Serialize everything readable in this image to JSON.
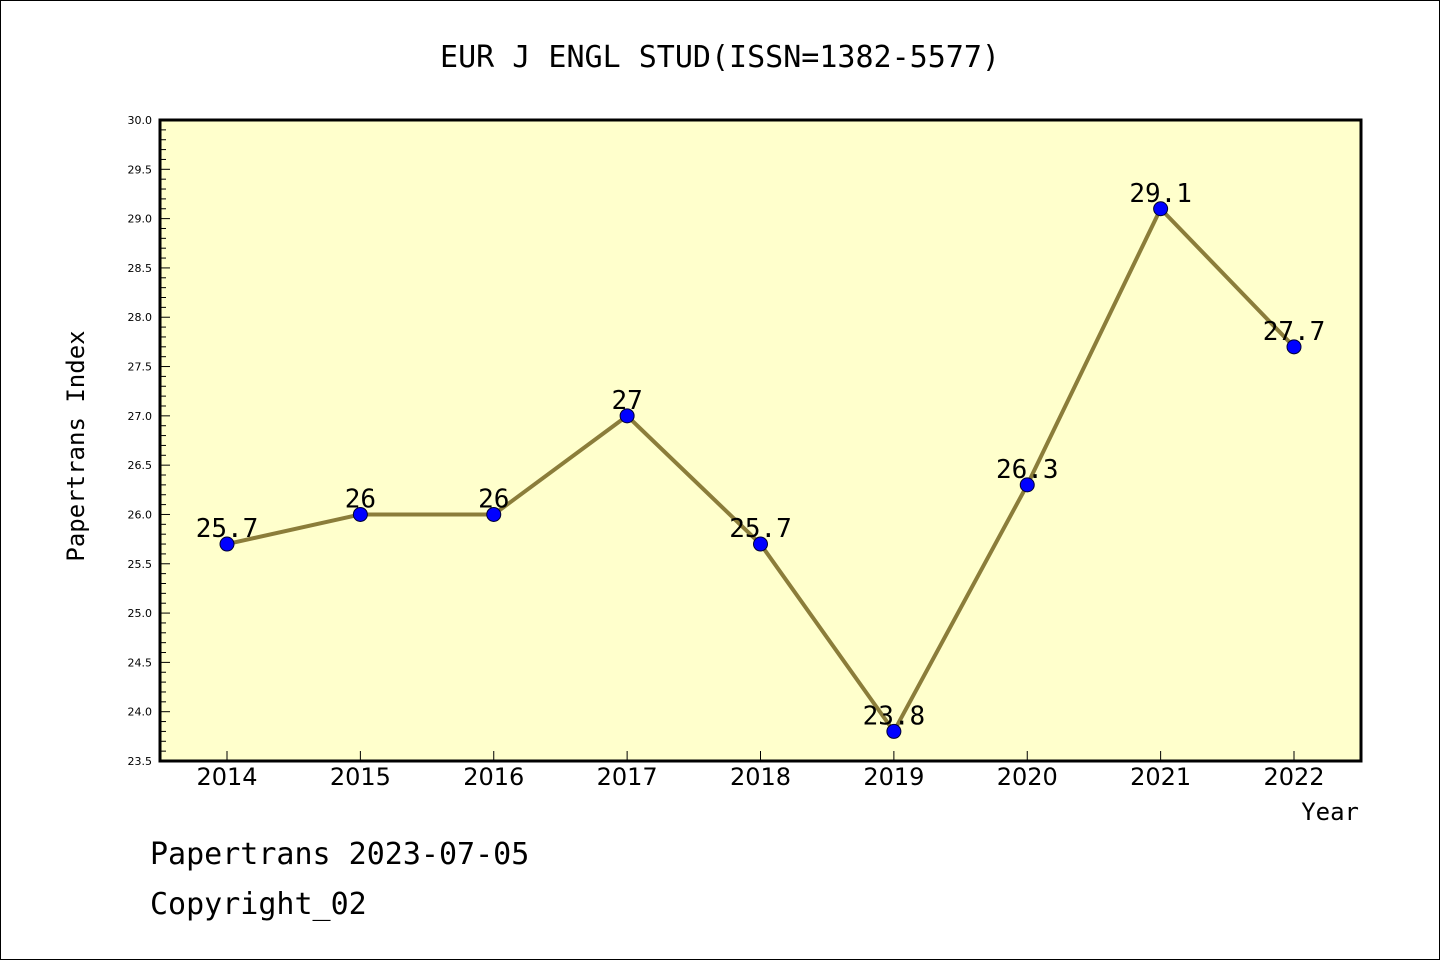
{
  "chart_data": {
    "type": "line",
    "title": "EUR J ENGL STUD(ISSN=1382-5577)",
    "xlabel": "Year",
    "ylabel": "Papertrans Index",
    "x": [
      "2014",
      "2015",
      "2016",
      "2017",
      "2018",
      "2019",
      "2020",
      "2021",
      "2022"
    ],
    "series": [
      {
        "values": [
          25.7,
          26,
          26,
          27,
          25.7,
          23.8,
          26.3,
          29.1,
          27.7
        ],
        "labels": [
          "25.7",
          "26",
          "26",
          "27",
          "25.7",
          "23.8",
          "26.3",
          "29.1",
          "27.7"
        ]
      }
    ],
    "ylim": [
      23.5,
      30.0
    ],
    "yticks": [
      "23.5",
      "24.0",
      "24.5",
      "25.0",
      "25.5",
      "26.0",
      "26.5",
      "27.0",
      "27.5",
      "28.0",
      "28.5",
      "29.0",
      "29.5",
      "30.0"
    ],
    "grid": false,
    "legend": "none",
    "colors": {
      "plot_background": "#ffffcc",
      "line": "#8b7d3a",
      "marker": "#0000ff"
    }
  },
  "footer": {
    "line1": "Papertrans 2023-07-05",
    "line2": "Copyright_02"
  }
}
